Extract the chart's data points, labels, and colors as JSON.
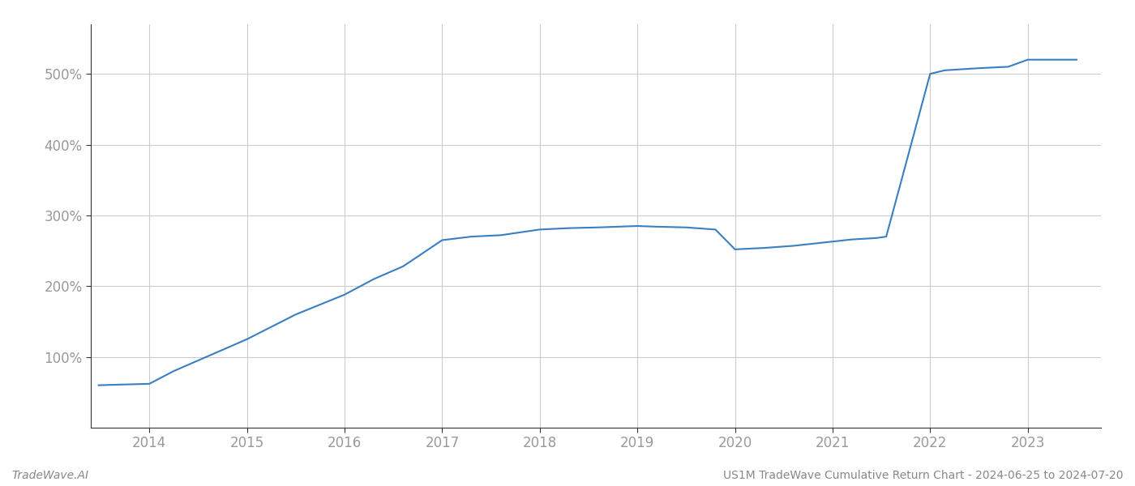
{
  "x": [
    2013.48,
    2014.0,
    2014.25,
    2014.5,
    2015.0,
    2015.5,
    2016.0,
    2016.3,
    2016.6,
    2017.0,
    2017.3,
    2017.6,
    2018.0,
    2018.3,
    2018.6,
    2019.0,
    2019.2,
    2019.5,
    2019.8,
    2020.0,
    2020.3,
    2020.6,
    2021.0,
    2021.2,
    2021.45,
    2021.55,
    2022.0,
    2022.15,
    2022.5,
    2022.8,
    2023.0,
    2023.5
  ],
  "y": [
    60,
    62,
    80,
    95,
    125,
    160,
    188,
    210,
    228,
    265,
    270,
    272,
    280,
    282,
    283,
    285,
    284,
    283,
    280,
    252,
    254,
    257,
    263,
    266,
    268,
    270,
    500,
    505,
    508,
    510,
    520,
    520
  ],
  "line_color": "#3a7fc1",
  "line_width": 1.5,
  "yticks": [
    100,
    200,
    300,
    400,
    500
  ],
  "xticks": [
    2014,
    2015,
    2016,
    2017,
    2018,
    2019,
    2020,
    2021,
    2022,
    2023
  ],
  "xlim": [
    2013.4,
    2023.75
  ],
  "ylim": [
    0,
    570
  ],
  "grid_color": "#cccccc",
  "background_color": "#ffffff",
  "footer_left": "TradeWave.AI",
  "footer_right": "US1M TradeWave Cumulative Return Chart - 2024-06-25 to 2024-07-20",
  "tick_fontsize": 12,
  "footer_fontsize": 10,
  "tick_color": "#999999",
  "spine_color": "#333333"
}
